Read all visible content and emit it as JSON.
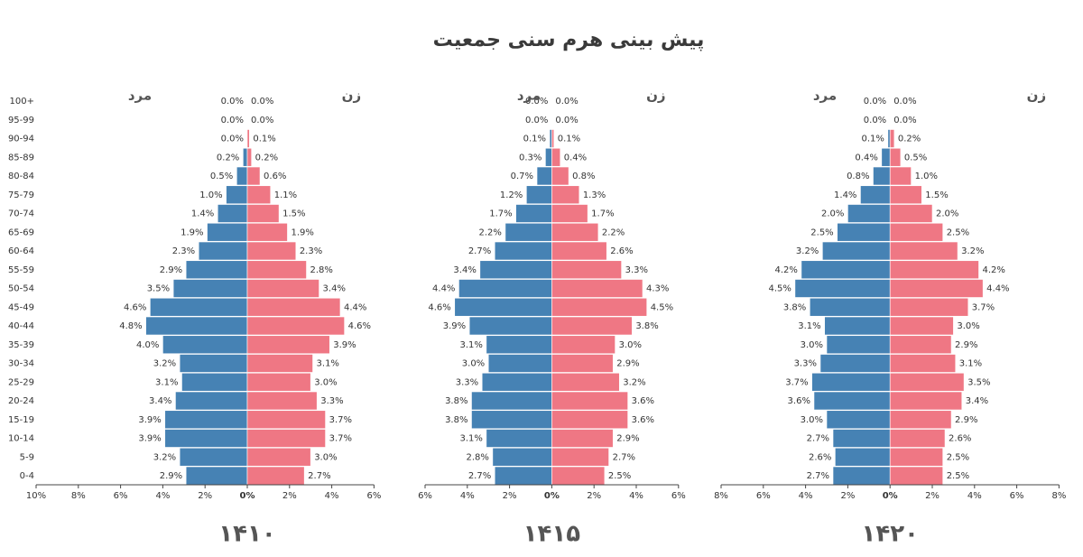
{
  "title": "پیش بینی هرم سنی جمعیت",
  "chart_data": [
    {
      "type": "pyramid",
      "title": "۱۴۱۰",
      "categories": [
        "0-4",
        "5-9",
        "10-14",
        "15-19",
        "20-24",
        "25-29",
        "30-34",
        "35-39",
        "40-44",
        "45-49",
        "50-54",
        "55-59",
        "60-64",
        "65-69",
        "70-74",
        "75-79",
        "80-84",
        "85-89",
        "90-94",
        "95-99",
        "100+"
      ],
      "series": [
        {
          "name": "مرد",
          "color": "#4682b4",
          "side": "left",
          "values": [
            2.9,
            3.2,
            3.9,
            3.9,
            3.4,
            3.1,
            3.2,
            4.0,
            4.8,
            4.6,
            3.5,
            2.9,
            2.3,
            1.9,
            1.4,
            1.0,
            0.5,
            0.2,
            0.0,
            0.0,
            0.0
          ],
          "value_labels": [
            "2.9%",
            "3.2%",
            "3.9%",
            "3.9%",
            "3.4%",
            "3.1%",
            "3.2%",
            "4.0%",
            "4.8%",
            "4.6%",
            "3.5%",
            "2.9%",
            "2.3%",
            "1.9%",
            "1.4%",
            "1.0%",
            "0.5%",
            "0.2%",
            "0.0%",
            "0.0%",
            "0.0%"
          ]
        },
        {
          "name": "زن",
          "color": "#ef7784",
          "side": "right",
          "values": [
            2.7,
            3.0,
            3.7,
            3.7,
            3.3,
            3.0,
            3.1,
            3.9,
            4.6,
            4.4,
            3.4,
            2.8,
            2.3,
            1.9,
            1.5,
            1.1,
            0.6,
            0.2,
            0.1,
            0.0,
            0.0
          ],
          "value_labels": [
            "2.7%",
            "3.0%",
            "3.7%",
            "3.7%",
            "3.3%",
            "3.0%",
            "3.1%",
            "3.9%",
            "4.6%",
            "4.4%",
            "3.4%",
            "2.8%",
            "2.3%",
            "1.9%",
            "1.5%",
            "1.1%",
            "0.6%",
            "0.2%",
            "0.1%",
            "0.0%",
            "0.0%"
          ]
        }
      ],
      "xlim": [
        -10,
        6
      ],
      "xticks": [
        {
          "value": -10,
          "label": "10%"
        },
        {
          "value": -8,
          "label": "8%"
        },
        {
          "value": -6,
          "label": "6%"
        },
        {
          "value": -4,
          "label": "4%"
        },
        {
          "value": -2,
          "label": "2%"
        },
        {
          "value": 0,
          "label": "0%"
        },
        {
          "value": 2,
          "label": "2%"
        },
        {
          "value": 4,
          "label": "4%"
        },
        {
          "value": 6,
          "label": "6%"
        }
      ]
    },
    {
      "type": "pyramid",
      "title": "۱۴۱۵",
      "series": [
        {
          "name": "مرد",
          "color": "#4682b4",
          "side": "left",
          "values": [
            2.7,
            2.8,
            3.1,
            3.8,
            3.8,
            3.3,
            3.0,
            3.1,
            3.9,
            4.6,
            4.4,
            3.4,
            2.7,
            2.2,
            1.7,
            1.2,
            0.7,
            0.3,
            0.1,
            0.0,
            0.0
          ],
          "value_labels": [
            "2.7%",
            "2.8%",
            "3.1%",
            "3.8%",
            "3.8%",
            "3.3%",
            "3.0%",
            "3.1%",
            "3.9%",
            "4.6%",
            "4.4%",
            "3.4%",
            "2.7%",
            "2.2%",
            "1.7%",
            "1.2%",
            "0.7%",
            "0.3%",
            "0.1%",
            "0.0%",
            "0.0%"
          ]
        },
        {
          "name": "زن",
          "color": "#ef7784",
          "side": "right",
          "values": [
            2.5,
            2.7,
            2.9,
            3.6,
            3.6,
            3.2,
            2.9,
            3.0,
            3.8,
            4.5,
            4.3,
            3.3,
            2.6,
            2.2,
            1.7,
            1.3,
            0.8,
            0.4,
            0.1,
            0.0,
            0.0
          ],
          "value_labels": [
            "2.5%",
            "2.7%",
            "2.9%",
            "3.6%",
            "3.6%",
            "3.2%",
            "2.9%",
            "3.0%",
            "3.8%",
            "4.5%",
            "4.3%",
            "3.3%",
            "2.6%",
            "2.2%",
            "1.7%",
            "1.3%",
            "0.8%",
            "0.4%",
            "0.1%",
            "0.0%",
            "0.0%"
          ]
        }
      ],
      "xlim": [
        -6,
        6
      ],
      "xticks": [
        {
          "value": -6,
          "label": "6%"
        },
        {
          "value": -4,
          "label": "4%"
        },
        {
          "value": -2,
          "label": "2%"
        },
        {
          "value": 0,
          "label": "0%"
        },
        {
          "value": 2,
          "label": "2%"
        },
        {
          "value": 4,
          "label": "4%"
        },
        {
          "value": 6,
          "label": "6%"
        }
      ]
    },
    {
      "type": "pyramid",
      "title": "۱۴۲۰",
      "series": [
        {
          "name": "مرد",
          "color": "#4682b4",
          "side": "left",
          "values": [
            2.7,
            2.6,
            2.7,
            3.0,
            3.6,
            3.7,
            3.3,
            3.0,
            3.1,
            3.8,
            4.5,
            4.2,
            3.2,
            2.5,
            2.0,
            1.4,
            0.8,
            0.4,
            0.1,
            0.0,
            0.0
          ],
          "value_labels": [
            "2.7%",
            "2.6%",
            "2.7%",
            "3.0%",
            "3.6%",
            "3.7%",
            "3.3%",
            "3.0%",
            "3.1%",
            "3.8%",
            "4.5%",
            "4.2%",
            "3.2%",
            "2.5%",
            "2.0%",
            "1.4%",
            "0.8%",
            "0.4%",
            "0.1%",
            "0.0%",
            "0.0%"
          ]
        },
        {
          "name": "زن",
          "color": "#ef7784",
          "side": "right",
          "values": [
            2.5,
            2.5,
            2.6,
            2.9,
            3.4,
            3.5,
            3.1,
            2.9,
            3.0,
            3.7,
            4.4,
            4.2,
            3.2,
            2.5,
            2.0,
            1.5,
            1.0,
            0.5,
            0.2,
            0.0,
            0.0
          ],
          "value_labels": [
            "2.5%",
            "2.5%",
            "2.6%",
            "2.9%",
            "3.4%",
            "3.5%",
            "3.1%",
            "2.9%",
            "3.0%",
            "3.7%",
            "4.4%",
            "4.2%",
            "3.2%",
            "2.5%",
            "2.0%",
            "1.5%",
            "1.0%",
            "0.5%",
            "0.2%",
            "0.0%",
            "0.0%"
          ]
        }
      ],
      "xlim": [
        -8,
        8
      ],
      "xticks": [
        {
          "value": -8,
          "label": "8%"
        },
        {
          "value": -6,
          "label": "6%"
        },
        {
          "value": -4,
          "label": "4%"
        },
        {
          "value": -2,
          "label": "2%"
        },
        {
          "value": 0,
          "label": "0%"
        },
        {
          "value": 2,
          "label": "2%"
        },
        {
          "value": 4,
          "label": "4%"
        },
        {
          "value": 6,
          "label": "6%"
        },
        {
          "value": 8,
          "label": "8%"
        }
      ]
    }
  ]
}
